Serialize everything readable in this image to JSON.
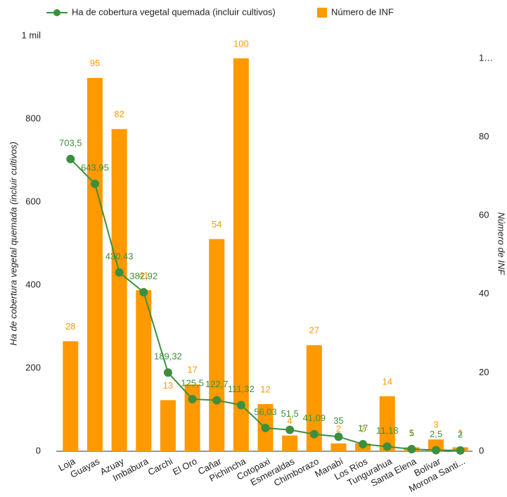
{
  "chart_data": {
    "type": "bar-line",
    "categories": [
      "Loja",
      "Guayas",
      "Azuay",
      "Imbabura",
      "Carchi",
      "El Oro",
      "Cañar",
      "Pichincha",
      "Cotopaxi",
      "Esmeraldas",
      "Chimborazo",
      "Manabí",
      "Los Ríos",
      "Tungurahua",
      "Santa Elena",
      "Bolívar",
      "Morona Santi..."
    ],
    "series": [
      {
        "name": "Ha de cobertura vegetal quemada (incluir cultivos)",
        "type": "line",
        "axis": "y",
        "color": "#3d8f3d",
        "values": [
          703.5,
          643.95,
          430.43,
          382.92,
          189.32,
          125.5,
          122.7,
          111.32,
          56.03,
          51.5,
          41.09,
          35,
          17,
          11.18,
          5,
          2.5,
          2
        ],
        "value_labels": [
          "703,5",
          "643,95",
          "430,43",
          "382,92",
          "189,32",
          "125,5",
          "122,7",
          "111,32",
          "56,03",
          "51,5",
          "41,09",
          "35",
          "17",
          "11,18",
          "5",
          "2,5",
          "2"
        ]
      },
      {
        "name": "Número de INF",
        "type": "bar",
        "axis": "y2",
        "color": "#ff9900",
        "values": [
          28,
          95,
          82,
          41,
          13,
          17,
          54,
          100,
          12,
          4,
          27,
          2,
          2,
          14,
          1,
          3,
          1
        ]
      }
    ],
    "ylabel": "Ha de cobertura vegetal quemada (incluir cultivos)",
    "y2label": "Número de INF",
    "ylim": [
      0,
      1000
    ],
    "yticks": [
      0,
      200,
      400,
      600,
      800,
      {
        "value": 1000,
        "label": "1 mil"
      }
    ],
    "y2lim": [
      0,
      105.7
    ],
    "y2ticks": [
      0,
      20,
      40,
      60,
      80,
      {
        "value": 100,
        "label": "1…"
      }
    ],
    "legend": "top"
  }
}
